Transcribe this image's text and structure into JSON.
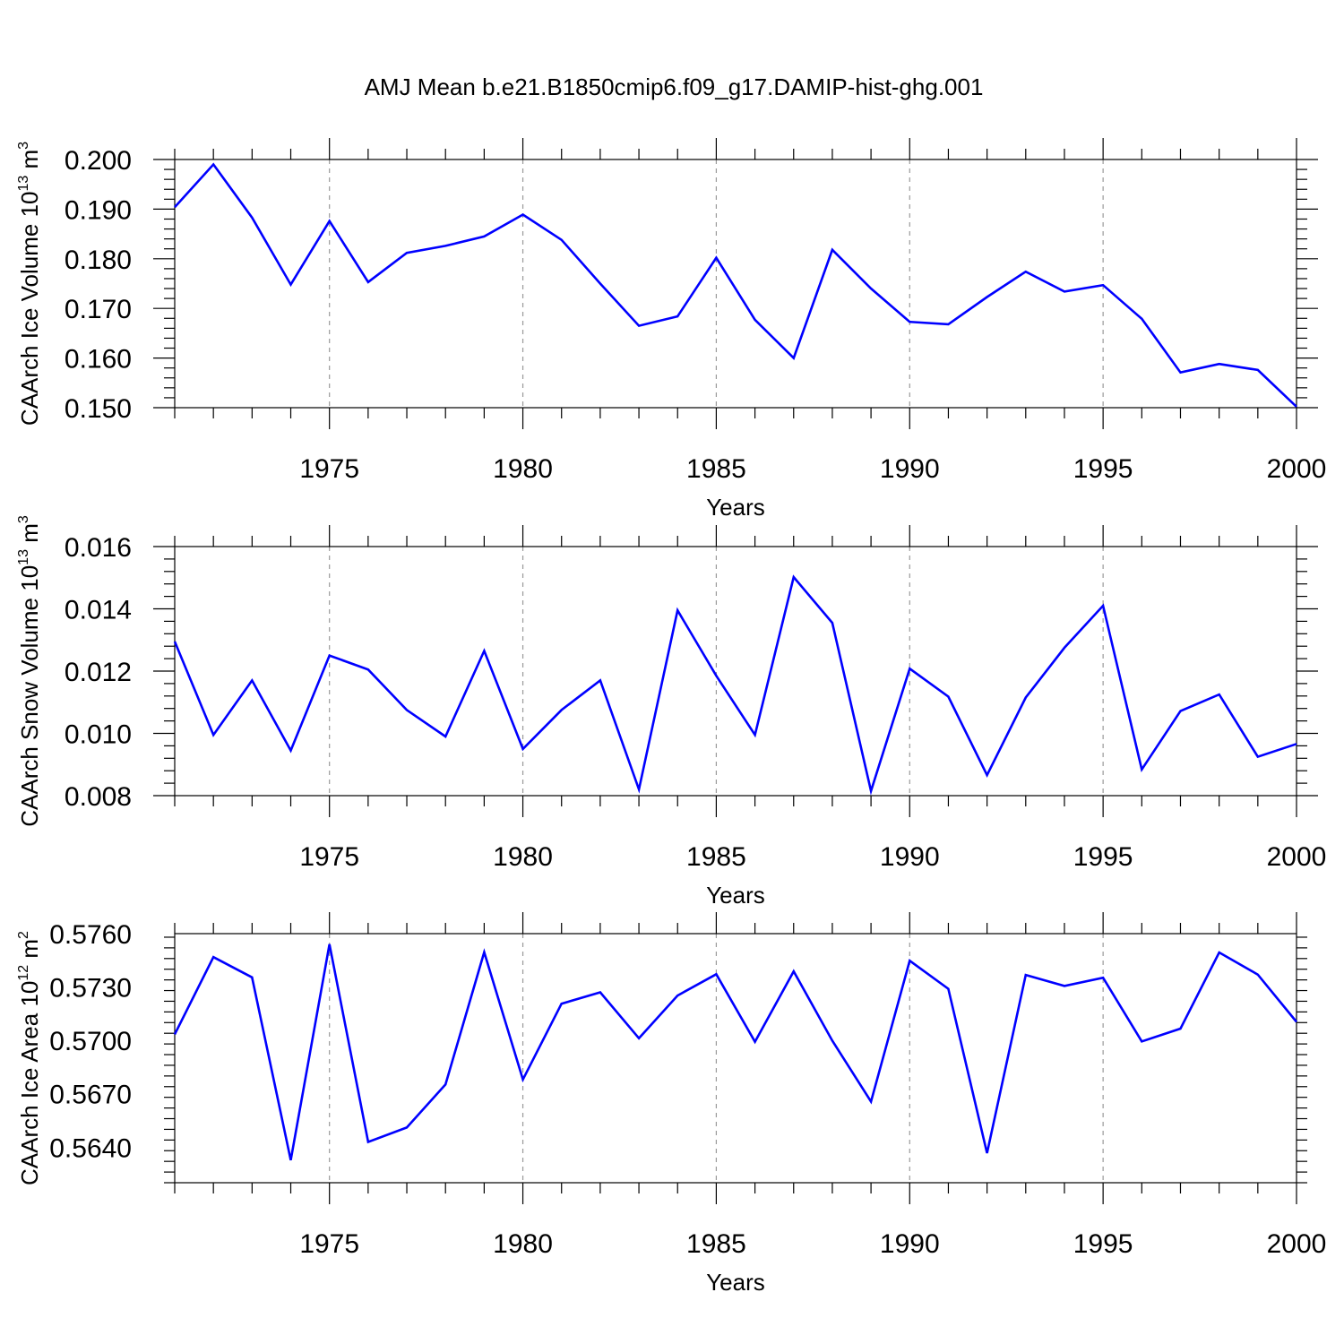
{
  "title": "AMJ Mean b.e21.B1850cmip6.f09_g17.DAMIP-hist-ghg.001",
  "chart_data": [
    {
      "type": "line",
      "ylabel": "CAArch Ice Volume 10",
      "ylabel_exp": "13",
      "ylabel_unit": " m",
      "ylabel_unit_exp": "3",
      "xlabel": "Years",
      "xlim": [
        1971,
        2000
      ],
      "ylim": [
        0.15,
        0.2
      ],
      "yticks": [
        "0.200",
        "0.190",
        "0.180",
        "0.170",
        "0.160",
        "0.150"
      ],
      "ytick_values": [
        0.2,
        0.19,
        0.18,
        0.17,
        0.16,
        0.15
      ],
      "xticks": [
        "1975",
        "1980",
        "1985",
        "1990",
        "1995",
        "2000"
      ],
      "xtick_values": [
        1975,
        1980,
        1985,
        1990,
        1995,
        2000
      ],
      "grid": "vertical dashed at labeled years",
      "series": [
        {
          "color": "#0000ff",
          "x": [
            1971,
            1972,
            1973,
            1974,
            1975,
            1976,
            1977,
            1978,
            1979,
            1980,
            1981,
            1982,
            1983,
            1984,
            1985,
            1986,
            1987,
            1988,
            1989,
            1990,
            1991,
            1992,
            1993,
            1994,
            1995,
            1996,
            1997,
            1998,
            1999,
            2000
          ],
          "values": [
            0.1904,
            0.199,
            0.1883,
            0.1748,
            0.1876,
            0.1753,
            0.1812,
            0.1826,
            0.1845,
            0.1889,
            0.1838,
            0.175,
            0.1665,
            0.1684,
            0.1802,
            0.1677,
            0.16,
            0.1818,
            0.174,
            0.1673,
            0.1668,
            0.1723,
            0.1774,
            0.1734,
            0.1747,
            0.1679,
            0.1571,
            0.1588,
            0.1576,
            0.1502
          ]
        }
      ]
    },
    {
      "type": "line",
      "ylabel": "CAArch Snow Volume 10",
      "ylabel_exp": "13",
      "ylabel_unit": " m",
      "ylabel_unit_exp": "3",
      "xlabel": "Years",
      "xlim": [
        1971,
        2000
      ],
      "ylim": [
        0.008,
        0.016
      ],
      "yticks": [
        "0.016",
        "0.014",
        "0.012",
        "0.010",
        "0.008"
      ],
      "ytick_values": [
        0.016,
        0.014,
        0.012,
        0.01,
        0.008
      ],
      "xticks": [
        "1975",
        "1980",
        "1985",
        "1990",
        "1995",
        "2000"
      ],
      "xtick_values": [
        1975,
        1980,
        1985,
        1990,
        1995,
        2000
      ],
      "grid": "vertical dashed at labeled years",
      "series": [
        {
          "color": "#0000ff",
          "x": [
            1971,
            1972,
            1973,
            1974,
            1975,
            1976,
            1977,
            1978,
            1979,
            1980,
            1981,
            1982,
            1983,
            1984,
            1985,
            1986,
            1987,
            1988,
            1989,
            1990,
            1991,
            1992,
            1993,
            1994,
            1995,
            1996,
            1997,
            1998,
            1999,
            2000
          ],
          "values": [
            0.01295,
            0.00995,
            0.0117,
            0.00945,
            0.0125,
            0.01205,
            0.01075,
            0.0099,
            0.01265,
            0.0095,
            0.01075,
            0.0117,
            0.0082,
            0.01395,
            0.01185,
            0.00995,
            0.01502,
            0.01355,
            0.00815,
            0.01208,
            0.01118,
            0.00866,
            0.01115,
            0.01275,
            0.0141,
            0.00884,
            0.01072,
            0.01125,
            0.00925,
            0.00966
          ]
        }
      ]
    },
    {
      "type": "line",
      "ylabel": "CAArch Ice Area 10",
      "ylabel_exp": "12",
      "ylabel_unit": " m",
      "ylabel_unit_exp": "2",
      "xlabel": "Years",
      "xlim": [
        1971,
        2000
      ],
      "ylim": [
        0.562,
        0.576
      ],
      "yticks": [
        "0.5760",
        "0.5730",
        "0.5700",
        "0.5670",
        "0.5640"
      ],
      "ytick_values": [
        0.576,
        0.573,
        0.57,
        0.567,
        0.564
      ],
      "xticks": [
        "1975",
        "1980",
        "1985",
        "1990",
        "1995",
        "2000"
      ],
      "xtick_values": [
        1975,
        1980,
        1985,
        1990,
        1995,
        2000
      ],
      "grid": "vertical dashed at labeled years",
      "series": [
        {
          "color": "#0000ff",
          "x": [
            1971,
            1972,
            1973,
            1974,
            1975,
            1976,
            1977,
            1978,
            1979,
            1980,
            1981,
            1982,
            1983,
            1984,
            1985,
            1986,
            1987,
            1988,
            1989,
            1990,
            1991,
            1992,
            1993,
            1994,
            1995,
            1996,
            1997,
            1998,
            1999,
            2000
          ],
          "values": [
            0.57034,
            0.57468,
            0.57354,
            0.56327,
            0.5754,
            0.56429,
            0.5651,
            0.56752,
            0.57496,
            0.5678,
            0.57206,
            0.5727,
            0.57012,
            0.57252,
            0.57372,
            0.56992,
            0.57388,
            0.56998,
            0.56656,
            0.57448,
            0.5729,
            0.56366,
            0.57368,
            0.57306,
            0.57352,
            0.56994,
            0.57066,
            0.57494,
            0.5737,
            0.57104
          ]
        }
      ]
    }
  ]
}
